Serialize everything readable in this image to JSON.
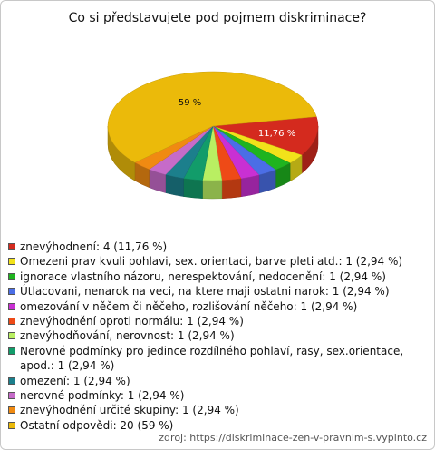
{
  "chart_data": {
    "type": "pie",
    "title": "Co si představujete pod pojmem diskriminace?",
    "categories": [
      "znevýhodnení: 4 (11,76 %)",
      "Omezeni prav kvuli pohlavi, sex. orientaci, barve pleti atd.: 1 (2,94 %)",
      "ignorace vlastního názoru, nerespektování, nedocenění: 1 (2,94 %)",
      "Útlacovani, nenarok na veci, na ktere maji ostatni narok: 1 (2,94 %)",
      "omezování v něčem či něčeho, rozlišování něčeho: 1 (2,94 %)",
      "znevýhodnění oproti normálu: 1 (2,94 %)",
      "znevýhodňování, nerovnost: 1 (2,94 %)",
      "Nerovné podmínky pro jedince rozdílného pohlaví, rasy, sex.orientace, apod.: 1 (2,94 %)",
      "omezení: 1 (2,94 %)",
      "nerovné podmínky: 1 (2,94 %)",
      "znevýhodnění určité skupiny: 1 (2,94 %)",
      "Ostatní odpovědi: 20 (59 %)"
    ],
    "values": [
      11.76,
      2.94,
      2.94,
      2.94,
      2.94,
      2.94,
      2.94,
      2.94,
      2.94,
      2.94,
      2.94,
      59
    ],
    "value_labels": [
      "11,76 %",
      null,
      null,
      null,
      null,
      null,
      null,
      null,
      null,
      null,
      null,
      "59 %"
    ],
    "colors": [
      "#d42a1e",
      "#f2e21a",
      "#1fb41f",
      "#4b6ee6",
      "#c930d3",
      "#ee4a17",
      "#b9ef62",
      "#129c6a",
      "#1c7f8c",
      "#c66bc9",
      "#f08a12",
      "#ebba0a"
    ]
  },
  "source": "zdroj: https://diskriminace-zen-v-pravnim-s.vyplnto.cz"
}
